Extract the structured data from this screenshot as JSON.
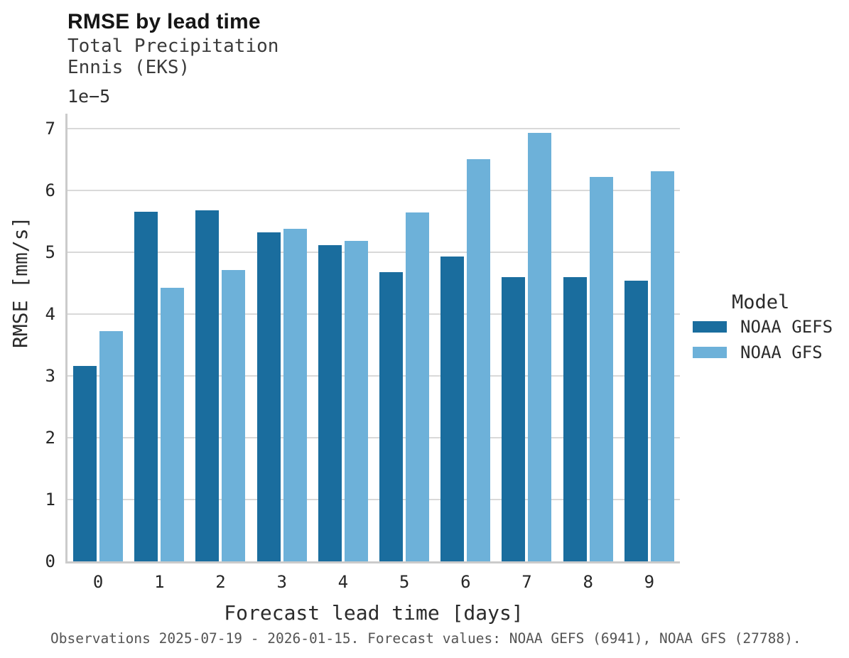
{
  "header": {
    "title": "RMSE by lead time",
    "subtitle_line1": "Total Precipitation",
    "subtitle_line2": "Ennis (EKS)"
  },
  "chart_data": {
    "type": "bar",
    "title": "RMSE by lead time",
    "subtitle": [
      "Total Precipitation",
      "Ennis (EKS)"
    ],
    "categories": [
      "0",
      "1",
      "2",
      "3",
      "4",
      "5",
      "6",
      "7",
      "8",
      "9"
    ],
    "series": [
      {
        "name": "NOAA GEFS",
        "color": "#1a6d9e",
        "values": [
          3.16,
          5.65,
          5.68,
          5.32,
          5.12,
          4.68,
          4.93,
          4.6,
          4.6,
          4.54
        ]
      },
      {
        "name": "NOAA GFS",
        "color": "#6db1d9",
        "values": [
          3.72,
          4.43,
          4.71,
          5.38,
          5.18,
          5.64,
          6.51,
          6.93,
          6.22,
          6.31
        ]
      }
    ],
    "value_unit_multiplier": "1e-5",
    "offset_text": "1e−5",
    "xlabel": "Forecast lead time [days]",
    "ylabel": "RMSE [mm/s]",
    "ylim": [
      0,
      7.25
    ],
    "yticks": [
      0,
      1,
      2,
      3,
      4,
      5,
      6,
      7
    ],
    "grid": "horizontal",
    "legend_position": "right"
  },
  "legend": {
    "title": "Model",
    "entries": [
      {
        "label": "NOAA GEFS",
        "color": "#1a6d9e"
      },
      {
        "label": "NOAA GFS",
        "color": "#6db1d9"
      }
    ]
  },
  "footer": {
    "text": "Observations 2025-07-19 - 2026-01-15. Forecast values: NOAA GEFS (6941), NOAA GFS (27788)."
  },
  "colors": {
    "gefs_bar": "#1a6d9e",
    "gfs_bar": "#6db1d9",
    "gridline": "#d9d9d9",
    "spine": "#cbcbcb",
    "background": "#ffffff"
  }
}
